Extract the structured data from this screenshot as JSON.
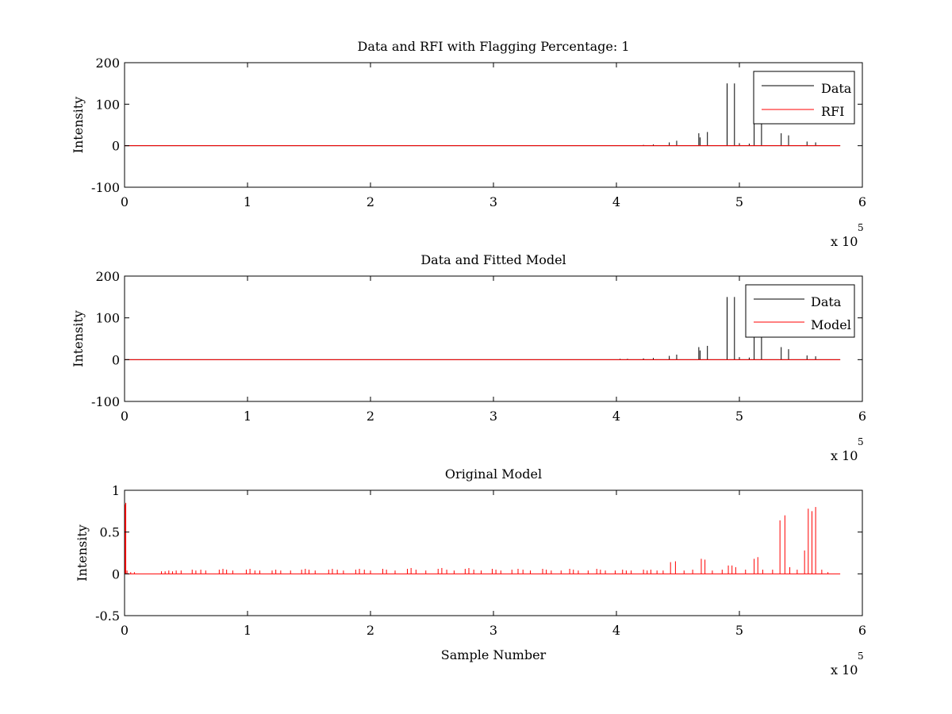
{
  "chart_data": [
    {
      "type": "line",
      "title": "Data and RFI with Flagging Percentage: 1",
      "xlabel": "",
      "ylabel": "Intensity",
      "xlim": [
        0,
        6
      ],
      "ylim": [
        -100,
        200
      ],
      "xticks": [
        0,
        1,
        2,
        3,
        4,
        5,
        6
      ],
      "xtick_labels": [
        "0",
        "1",
        "2",
        "3",
        "4",
        "5",
        "6"
      ],
      "yticks": [
        -100,
        0,
        100,
        200
      ],
      "ytick_labels": [
        "-100",
        "0",
        "100",
        "200"
      ],
      "x_multiplier_base": "x 10",
      "x_multiplier_exp": "5",
      "grid": false,
      "legend_position": "top-right",
      "baseline_end": 5.82,
      "series": [
        {
          "name": "Data",
          "color": "#000000",
          "spikes": [
            [
              4.22,
              2
            ],
            [
              4.3,
              3
            ],
            [
              4.43,
              8
            ],
            [
              4.49,
              12
            ],
            [
              4.67,
              30
            ],
            [
              4.68,
              20
            ],
            [
              4.74,
              33
            ],
            [
              4.9,
              150
            ],
            [
              4.96,
              150
            ],
            [
              5.0,
              6
            ],
            [
              5.08,
              5
            ],
            [
              5.12,
              60
            ],
            [
              5.18,
              55
            ],
            [
              5.34,
              30
            ],
            [
              5.4,
              25
            ],
            [
              5.55,
              10
            ],
            [
              5.62,
              8
            ]
          ]
        },
        {
          "name": "RFI",
          "color": "#ff0000",
          "spikes": [
            [
              0.95,
              0.5
            ],
            [
              2.34,
              0.5
            ],
            [
              3.08,
              0.5
            ],
            [
              5.12,
              0.5
            ]
          ]
        }
      ]
    },
    {
      "type": "line",
      "title": "Data and Fitted Model",
      "xlabel": "",
      "ylabel": "Intensity",
      "xlim": [
        0,
        6
      ],
      "ylim": [
        -100,
        200
      ],
      "xticks": [
        0,
        1,
        2,
        3,
        4,
        5,
        6
      ],
      "xtick_labels": [
        "0",
        "1",
        "2",
        "3",
        "4",
        "5",
        "6"
      ],
      "yticks": [
        -100,
        0,
        100,
        200
      ],
      "ytick_labels": [
        "-100",
        "0",
        "100",
        "200"
      ],
      "x_multiplier_base": "x 10",
      "x_multiplier_exp": "5",
      "grid": false,
      "legend_position": "top-right",
      "baseline_end": 5.82,
      "series": [
        {
          "name": "Data",
          "color": "#000000",
          "spikes": [
            [
              4.03,
              2
            ],
            [
              4.09,
              2
            ],
            [
              4.22,
              3
            ],
            [
              4.3,
              4
            ],
            [
              4.43,
              9
            ],
            [
              4.49,
              12
            ],
            [
              4.67,
              30
            ],
            [
              4.68,
              22
            ],
            [
              4.74,
              33
            ],
            [
              4.9,
              150
            ],
            [
              4.96,
              150
            ],
            [
              5.0,
              6
            ],
            [
              5.08,
              5
            ],
            [
              5.12,
              60
            ],
            [
              5.18,
              55
            ],
            [
              5.34,
              30
            ],
            [
              5.4,
              25
            ],
            [
              5.55,
              10
            ],
            [
              5.62,
              8
            ]
          ]
        },
        {
          "name": "Model",
          "color": "#ff0000",
          "spikes": []
        }
      ]
    },
    {
      "type": "line",
      "title": "Original Model",
      "xlabel": "Sample Number",
      "ylabel": "Intensity",
      "xlim": [
        0,
        6
      ],
      "ylim": [
        -0.5,
        1
      ],
      "xticks": [
        0,
        1,
        2,
        3,
        4,
        5,
        6
      ],
      "xtick_labels": [
        "0",
        "1",
        "2",
        "3",
        "4",
        "5",
        "6"
      ],
      "yticks": [
        -0.5,
        0,
        0.5,
        1
      ],
      "ytick_labels": [
        "-0.5",
        "0",
        "0.5",
        "1"
      ],
      "x_multiplier_base": "x 10",
      "x_multiplier_exp": "5",
      "grid": false,
      "legend_position": "none",
      "baseline_end": 5.82,
      "series": [
        {
          "name": "",
          "color": "#ff0000",
          "spikes": [
            [
              0.005,
              0.83
            ],
            [
              0.01,
              0.85
            ],
            [
              0.02,
              0.04
            ],
            [
              0.05,
              0.02
            ],
            [
              0.08,
              0.02
            ],
            [
              0.3,
              0.03
            ],
            [
              0.33,
              0.03
            ],
            [
              0.36,
              0.04
            ],
            [
              0.39,
              0.03
            ],
            [
              0.42,
              0.04
            ],
            [
              0.46,
              0.04
            ],
            [
              0.55,
              0.05
            ],
            [
              0.58,
              0.04
            ],
            [
              0.62,
              0.05
            ],
            [
              0.66,
              0.04
            ],
            [
              0.77,
              0.05
            ],
            [
              0.8,
              0.06
            ],
            [
              0.83,
              0.05
            ],
            [
              0.88,
              0.04
            ],
            [
              0.99,
              0.05
            ],
            [
              1.02,
              0.06
            ],
            [
              1.06,
              0.04
            ],
            [
              1.1,
              0.04
            ],
            [
              1.2,
              0.04
            ],
            [
              1.23,
              0.05
            ],
            [
              1.27,
              0.04
            ],
            [
              1.35,
              0.04
            ],
            [
              1.44,
              0.05
            ],
            [
              1.47,
              0.06
            ],
            [
              1.5,
              0.05
            ],
            [
              1.55,
              0.04
            ],
            [
              1.66,
              0.05
            ],
            [
              1.69,
              0.06
            ],
            [
              1.73,
              0.05
            ],
            [
              1.78,
              0.04
            ],
            [
              1.88,
              0.05
            ],
            [
              1.91,
              0.06
            ],
            [
              1.95,
              0.05
            ],
            [
              2.0,
              0.04
            ],
            [
              2.1,
              0.06
            ],
            [
              2.13,
              0.05
            ],
            [
              2.2,
              0.04
            ],
            [
              2.3,
              0.06
            ],
            [
              2.33,
              0.07
            ],
            [
              2.37,
              0.05
            ],
            [
              2.45,
              0.04
            ],
            [
              2.55,
              0.06
            ],
            [
              2.58,
              0.07
            ],
            [
              2.62,
              0.05
            ],
            [
              2.68,
              0.04
            ],
            [
              2.77,
              0.06
            ],
            [
              2.8,
              0.07
            ],
            [
              2.84,
              0.05
            ],
            [
              2.9,
              0.04
            ],
            [
              2.99,
              0.06
            ],
            [
              3.02,
              0.05
            ],
            [
              3.06,
              0.04
            ],
            [
              3.15,
              0.05
            ],
            [
              3.2,
              0.06
            ],
            [
              3.24,
              0.05
            ],
            [
              3.3,
              0.04
            ],
            [
              3.4,
              0.06
            ],
            [
              3.43,
              0.05
            ],
            [
              3.47,
              0.04
            ],
            [
              3.55,
              0.04
            ],
            [
              3.62,
              0.06
            ],
            [
              3.65,
              0.05
            ],
            [
              3.69,
              0.04
            ],
            [
              3.77,
              0.04
            ],
            [
              3.84,
              0.06
            ],
            [
              3.87,
              0.05
            ],
            [
              3.91,
              0.04
            ],
            [
              3.99,
              0.04
            ],
            [
              4.05,
              0.05
            ],
            [
              4.08,
              0.04
            ],
            [
              4.12,
              0.04
            ],
            [
              4.22,
              0.05
            ],
            [
              4.25,
              0.04
            ],
            [
              4.28,
              0.05
            ],
            [
              4.33,
              0.04
            ],
            [
              4.38,
              0.04
            ],
            [
              4.44,
              0.14
            ],
            [
              4.48,
              0.15
            ],
            [
              4.55,
              0.04
            ],
            [
              4.62,
              0.05
            ],
            [
              4.69,
              0.18
            ],
            [
              4.72,
              0.17
            ],
            [
              4.78,
              0.04
            ],
            [
              4.86,
              0.05
            ],
            [
              4.91,
              0.1
            ],
            [
              4.94,
              0.1
            ],
            [
              4.97,
              0.08
            ],
            [
              5.05,
              0.05
            ],
            [
              5.12,
              0.18
            ],
            [
              5.15,
              0.2
            ],
            [
              5.19,
              0.05
            ],
            [
              5.27,
              0.05
            ],
            [
              5.33,
              0.64
            ],
            [
              5.37,
              0.7
            ],
            [
              5.41,
              0.08
            ],
            [
              5.47,
              0.05
            ],
            [
              5.53,
              0.28
            ],
            [
              5.56,
              0.78
            ],
            [
              5.59,
              0.75
            ],
            [
              5.62,
              0.8
            ],
            [
              5.67,
              0.05
            ],
            [
              5.72,
              0.02
            ]
          ]
        }
      ]
    }
  ]
}
